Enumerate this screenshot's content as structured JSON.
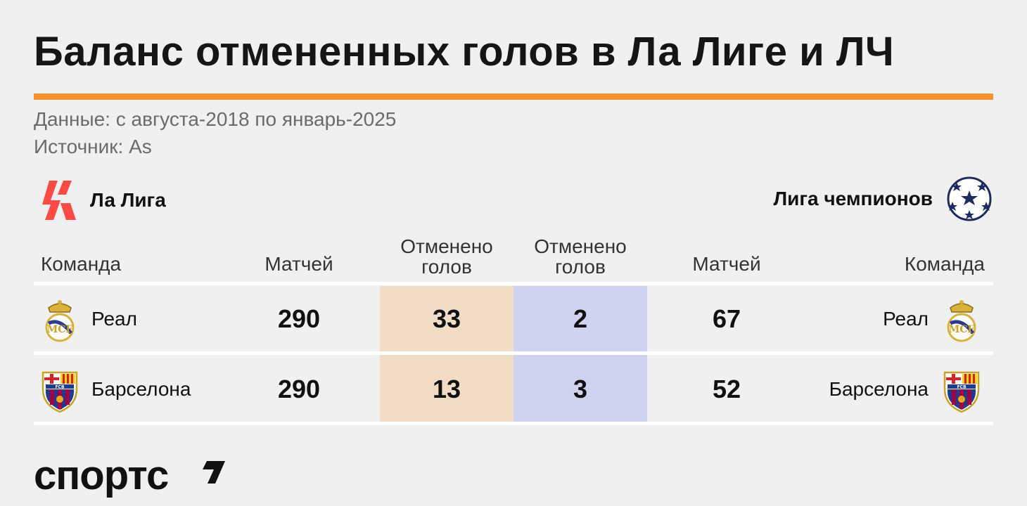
{
  "title": "Баланс отмененных голов в Ла Лиге и ЛЧ",
  "subtitle": {
    "data_range": "Данные: с августа-2018 по январь-2025",
    "source": "Источник: As"
  },
  "colors": {
    "accent": "#f7922f",
    "laliga_column": "#f2dcc6",
    "ucl_column": "#cfd3ef",
    "laliga_logo": "#ff4b44",
    "ucl_logo": "#1e2b5e"
  },
  "leagues": {
    "left": {
      "name": "Ла Лига",
      "icon": "laliga-logo"
    },
    "right": {
      "name": "Лига чемпионов",
      "icon": "champions-league-starball"
    }
  },
  "headers": {
    "team_left": "Команда",
    "matches_left": "Матчей",
    "cancelled_left_line1": "Отменено",
    "cancelled_left_line2": "голов",
    "cancelled_right_line1": "Отменено",
    "cancelled_right_line2": "голов",
    "matches_right": "Матчей",
    "team_right": "Команда"
  },
  "rows": [
    {
      "team": "Реал",
      "crest": "real-madrid-crest",
      "laliga_matches": "290",
      "laliga_cancelled": "33",
      "ucl_cancelled": "2",
      "ucl_matches": "67"
    },
    {
      "team": "Барселона",
      "crest": "barcelona-crest",
      "laliga_matches": "290",
      "laliga_cancelled": "13",
      "ucl_cancelled": "3",
      "ucl_matches": "52"
    }
  ],
  "brand": "спортс"
}
